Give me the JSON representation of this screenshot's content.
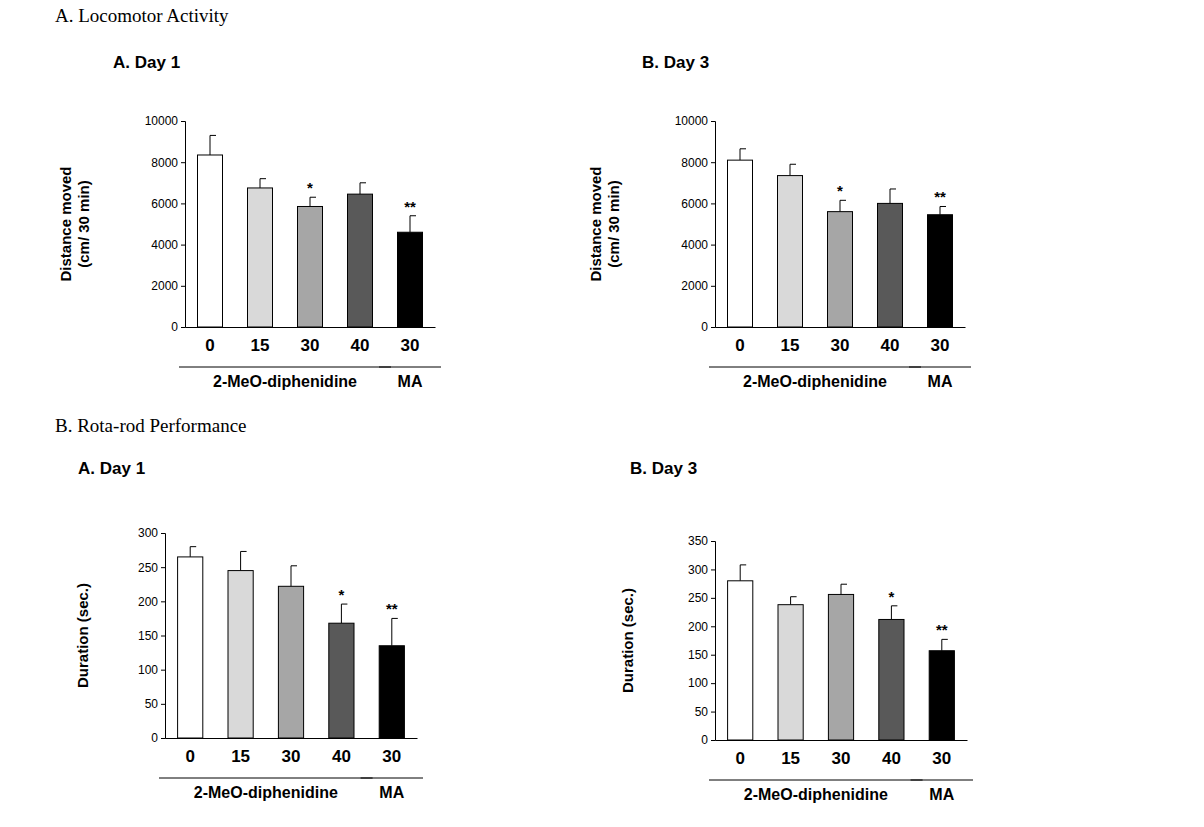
{
  "sections": [
    "A. Locomotor Activity",
    "B. Rota-rod Performance"
  ],
  "chart_data": [
    {
      "type": "bar",
      "title": "A. Day 1",
      "ylabel": [
        "Distance moved",
        "(cm/ 30 min)"
      ],
      "categories": [
        "0",
        "15",
        "30",
        "40",
        "30"
      ],
      "values": [
        8350,
        6750,
        5850,
        6450,
        4600
      ],
      "errors": [
        950,
        450,
        450,
        550,
        800
      ],
      "significance": [
        null,
        null,
        "*",
        null,
        "**"
      ],
      "groups": [
        {
          "label": "2-MeO-diphenidine",
          "start": 0,
          "end": 3
        },
        {
          "label": "MA",
          "start": 4,
          "end": 4
        }
      ],
      "colors": [
        "#ffffff",
        "#d9d9d9",
        "#a6a6a6",
        "#595959",
        "#000000"
      ],
      "ylim": [
        0,
        10000
      ],
      "yticks": [
        0,
        2000,
        4000,
        6000,
        8000,
        10000
      ],
      "grid": false
    },
    {
      "type": "bar",
      "title": "B. Day 3",
      "ylabel": [
        "Distance moved",
        "(cm/ 30 min)"
      ],
      "categories": [
        "0",
        "15",
        "30",
        "40",
        "30"
      ],
      "values": [
        8100,
        7350,
        5600,
        6000,
        5450
      ],
      "errors": [
        550,
        550,
        550,
        700,
        400
      ],
      "significance": [
        null,
        null,
        "*",
        null,
        "**"
      ],
      "groups": [
        {
          "label": "2-MeO-diphenidine",
          "start": 0,
          "end": 3
        },
        {
          "label": "MA",
          "start": 4,
          "end": 4
        }
      ],
      "colors": [
        "#ffffff",
        "#d9d9d9",
        "#a6a6a6",
        "#595959",
        "#000000"
      ],
      "ylim": [
        0,
        10000
      ],
      "yticks": [
        0,
        2000,
        4000,
        6000,
        8000,
        10000
      ],
      "grid": false
    },
    {
      "type": "bar",
      "title": "A. Day 1",
      "ylabel": [
        "Duration (sec.)"
      ],
      "categories": [
        "0",
        "15",
        "30",
        "40",
        "30"
      ],
      "values": [
        265,
        245,
        222,
        168,
        135
      ],
      "errors": [
        15,
        28,
        30,
        28,
        40
      ],
      "significance": [
        null,
        null,
        null,
        "*",
        "**"
      ],
      "groups": [
        {
          "label": "2-MeO-diphenidine",
          "start": 0,
          "end": 3
        },
        {
          "label": "MA",
          "start": 4,
          "end": 4
        }
      ],
      "colors": [
        "#ffffff",
        "#d9d9d9",
        "#a6a6a6",
        "#595959",
        "#000000"
      ],
      "ylim": [
        0,
        300
      ],
      "yticks": [
        0,
        50,
        100,
        150,
        200,
        250,
        300
      ],
      "grid": false
    },
    {
      "type": "bar",
      "title": "B. Day 3",
      "ylabel": [
        "Duration (sec.)"
      ],
      "categories": [
        "0",
        "15",
        "30",
        "40",
        "30"
      ],
      "values": [
        280,
        238,
        256,
        212,
        157
      ],
      "errors": [
        28,
        14,
        18,
        24,
        20
      ],
      "significance": [
        null,
        null,
        null,
        "*",
        "**"
      ],
      "groups": [
        {
          "label": "2-MeO-diphenidine",
          "start": 0,
          "end": 3
        },
        {
          "label": "MA",
          "start": 4,
          "end": 4
        }
      ],
      "colors": [
        "#ffffff",
        "#d9d9d9",
        "#a6a6a6",
        "#595959",
        "#000000"
      ],
      "ylim": [
        0,
        350
      ],
      "yticks": [
        0,
        50,
        100,
        150,
        200,
        250,
        300,
        350
      ],
      "grid": false
    }
  ]
}
